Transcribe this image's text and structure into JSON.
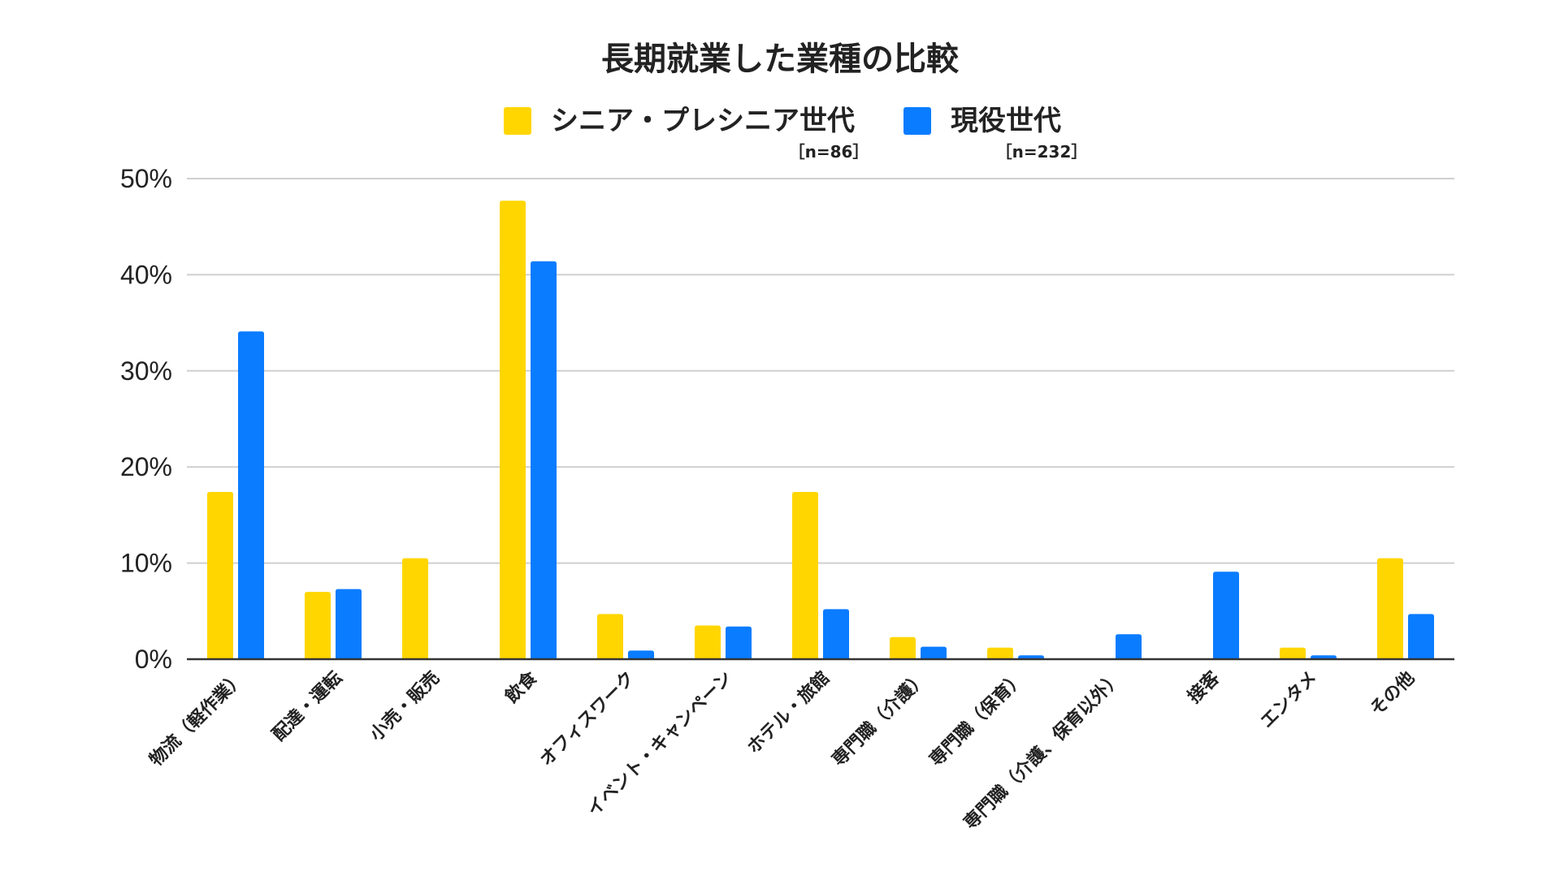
{
  "chart_data": {
    "type": "bar",
    "title": "長期就業した業種の比較",
    "categories": [
      "物流（軽作業）",
      "配達・運転",
      "小売・販売",
      "飲食",
      "オフィスワーク",
      "イベント・キャンペーン",
      "ホテル・旅館",
      "専門職（介護）",
      "専門職（保育）",
      "専門職（介護、保育以外）",
      "接客",
      "エンタメ",
      "その他"
    ],
    "series": [
      {
        "name": "シニア・プレシニア世代",
        "n_label": "［n=86］",
        "color": "#FFD600",
        "values": [
          17.4,
          7.0,
          10.5,
          47.7,
          4.7,
          3.5,
          17.4,
          2.3,
          1.2,
          0,
          0,
          1.2,
          10.5
        ]
      },
      {
        "name": "現役世代",
        "n_label": "［n=232］",
        "color": "#0A7CFF",
        "values": [
          34.1,
          7.3,
          0,
          41.4,
          0.9,
          3.4,
          5.2,
          1.3,
          0.4,
          2.6,
          9.1,
          0.4,
          4.7
        ]
      }
    ],
    "ylim": [
      0,
      50
    ],
    "yticks": [
      0,
      10,
      20,
      30,
      40,
      50
    ],
    "ytick_labels": [
      "0%",
      "10%",
      "20%",
      "30%",
      "40%",
      "50%"
    ],
    "xlabel": "",
    "ylabel": "",
    "grid": true,
    "legend_position": "top-center"
  }
}
